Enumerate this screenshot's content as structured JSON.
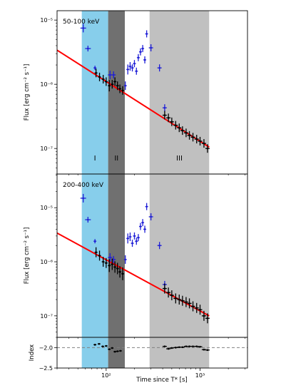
{
  "chart_data": {
    "type": "scatter",
    "x_scale": "log",
    "xlim": [
      30,
      3200
    ],
    "x_ticks": [
      100,
      1000
    ],
    "x_tick_labels": [
      "10²",
      "10³"
    ],
    "xlabel": "Time since T* [s]",
    "regions": [
      {
        "label": "I",
        "x": [
          55,
          105
        ],
        "color": "#87ceeb"
      },
      {
        "label": "II",
        "x": [
          105,
          158
        ],
        "color": "#707070"
      },
      {
        "label": "III",
        "x": [
          290,
          1250
        ],
        "color": "#c0c0c0"
      }
    ],
    "panels": [
      {
        "annotation": "50-100 keV",
        "ylabel": "Flux [erg cm⁻² s⁻¹]",
        "y_scale": "log",
        "ylim": [
          4e-08,
          1.4e-05
        ],
        "y_ticks": [
          1e-07,
          1e-06,
          1e-05
        ],
        "y_tick_labels": [
          "10⁻⁷",
          "10⁻⁶",
          "10⁻⁵"
        ],
        "show_region_labels": true,
        "fit_line": {
          "x": [
            30,
            1250
          ],
          "y": [
            3.4e-06,
            1.05e-07
          ],
          "color": "#ff0000"
        },
        "series": [
          {
            "color": "#1f1fd6",
            "points": [
              [
                57,
                7.5e-06,
                4,
                6
              ],
              [
                64,
                3.6e-06,
                4,
                4
              ],
              [
                76,
                1.8e-06,
                2,
                3
              ],
              [
                110,
                1.4e-06,
                3,
                6
              ],
              [
                120,
                1.4e-06,
                3,
                5
              ],
              [
                160,
                9.5e-07,
                2,
                6
              ],
              [
                170,
                1.7e-06,
                2,
                7
              ],
              [
                180,
                1.9e-06,
                2,
                6
              ],
              [
                190,
                1.8e-06,
                2,
                5
              ],
              [
                200,
                2.1e-06,
                2,
                5
              ],
              [
                210,
                1.6e-06,
                2,
                5
              ],
              [
                220,
                2.6e-06,
                2,
                5
              ],
              [
                232,
                3.2e-06,
                2,
                5
              ],
              [
                245,
                3.6e-06,
                2,
                5
              ],
              [
                258,
                2.4e-06,
                2,
                5
              ],
              [
                270,
                6.1e-06,
                2,
                5
              ],
              [
                300,
                3.7e-06,
                3,
                5
              ],
              [
                370,
                1.8e-06,
                3,
                5
              ],
              [
                420,
                4.3e-07,
                3,
                5
              ]
            ]
          },
          {
            "color": "#000000",
            "points": [
              [
                78,
                1.5e-06,
                2,
                6
              ],
              [
                85,
                1.3e-06,
                2,
                6
              ],
              [
                93,
                1.2e-06,
                2,
                6
              ],
              [
                100,
                1.1e-06,
                2,
                6
              ],
              [
                108,
                9.5e-07,
                2,
                8
              ],
              [
                116,
                1e-06,
                2,
                6
              ],
              [
                124,
                1.1e-06,
                2,
                6
              ],
              [
                132,
                9.5e-07,
                2,
                6
              ],
              [
                140,
                8.5e-07,
                2,
                6
              ],
              [
                150,
                8e-07,
                2,
                6
              ],
              [
                420,
                3.3e-07,
                3,
                6
              ],
              [
                460,
                3e-07,
                3,
                6
              ],
              [
                500,
                2.6e-07,
                3,
                6
              ],
              [
                550,
                2.3e-07,
                3,
                6
              ],
              [
                600,
                2.1e-07,
                3,
                6
              ],
              [
                650,
                1.9e-07,
                3,
                6
              ],
              [
                710,
                1.75e-07,
                3,
                6
              ],
              [
                770,
                1.6e-07,
                3,
                6
              ],
              [
                840,
                1.5e-07,
                3,
                6
              ],
              [
                920,
                1.4e-07,
                3,
                6
              ],
              [
                1000,
                1.3e-07,
                3,
                6
              ],
              [
                1100,
                1.2e-07,
                3,
                6
              ],
              [
                1200,
                1e-07,
                3,
                6
              ]
            ]
          }
        ]
      },
      {
        "annotation": "200-400 keV",
        "ylabel": "Flux [erg cm⁻² s⁻¹]",
        "y_scale": "log",
        "ylim": [
          4e-08,
          4.2e-05
        ],
        "y_ticks": [
          1e-07,
          1e-06,
          1e-05
        ],
        "y_tick_labels": [
          "10⁻⁷",
          "10⁻⁶",
          "10⁻⁵"
        ],
        "show_region_labels": false,
        "fit_line": {
          "x": [
            30,
            1250
          ],
          "y": [
            3.4e-06,
            1e-07
          ],
          "color": "#ff0000"
        },
        "series": [
          {
            "color": "#1f1fd6",
            "points": [
              [
                57,
                1.5e-05,
                4,
                6
              ],
              [
                64,
                6e-06,
                4,
                4
              ],
              [
                76,
                2.4e-06,
                2,
                3
              ],
              [
                110,
                1.2e-06,
                3,
                6
              ],
              [
                120,
                1.1e-06,
                3,
                5
              ],
              [
                160,
                1.1e-06,
                2,
                6
              ],
              [
                170,
                2.7e-06,
                2,
                7
              ],
              [
                180,
                2.9e-06,
                2,
                6
              ],
              [
                190,
                2.2e-06,
                2,
                5
              ],
              [
                200,
                3e-06,
                2,
                5
              ],
              [
                210,
                2.4e-06,
                2,
                5
              ],
              [
                220,
                2.8e-06,
                2,
                5
              ],
              [
                232,
                4.5e-06,
                2,
                5
              ],
              [
                245,
                5.3e-06,
                2,
                5
              ],
              [
                258,
                4e-06,
                2,
                5
              ],
              [
                270,
                1.05e-05,
                2,
                5
              ],
              [
                300,
                6.8e-06,
                3,
                5
              ],
              [
                370,
                2e-06,
                3,
                5
              ],
              [
                420,
                3.8e-07,
                3,
                5
              ]
            ]
          },
          {
            "color": "#000000",
            "points": [
              [
                78,
                1.5e-06,
                2,
                7
              ],
              [
                85,
                1.3e-06,
                2,
                7
              ],
              [
                93,
                1e-06,
                2,
                7
              ],
              [
                100,
                9.5e-07,
                2,
                7
              ],
              [
                108,
                8.5e-07,
                2,
                9
              ],
              [
                116,
                9e-07,
                2,
                8
              ],
              [
                124,
                8e-07,
                2,
                8
              ],
              [
                132,
                7.5e-07,
                2,
                8
              ],
              [
                140,
                6.5e-07,
                2,
                8
              ],
              [
                150,
                6e-07,
                2,
                9
              ],
              [
                420,
                3.2e-07,
                3,
                7
              ],
              [
                460,
                2.7e-07,
                3,
                7
              ],
              [
                500,
                2.4e-07,
                3,
                7
              ],
              [
                550,
                2.1e-07,
                3,
                7
              ],
              [
                600,
                2e-07,
                3,
                7
              ],
              [
                650,
                1.9e-07,
                3,
                7
              ],
              [
                710,
                1.8e-07,
                3,
                7
              ],
              [
                770,
                1.7e-07,
                3,
                7
              ],
              [
                840,
                1.5e-07,
                3,
                7
              ],
              [
                920,
                1.4e-07,
                3,
                7
              ],
              [
                1000,
                1.3e-07,
                3,
                7
              ],
              [
                1100,
                1e-07,
                3,
                7
              ],
              [
                1200,
                9e-08,
                3,
                7
              ]
            ]
          }
        ]
      },
      {
        "annotation": "",
        "ylabel": "Index",
        "y_scale": "linear",
        "ylim": [
          -2.5,
          -1.75
        ],
        "y_ticks": [
          -2.0,
          -2.5
        ],
        "y_tick_labels": [
          "−2.0",
          "−2.5"
        ],
        "show_region_labels": false,
        "hline": {
          "y": -2.0,
          "color": "#808080",
          "style": "dashed"
        },
        "series": [
          {
            "color": "#000000",
            "points": [
              [
                76,
                -1.93,
                2,
                0
              ],
              [
                84,
                -1.91,
                2,
                0
              ],
              [
                92,
                -1.97,
                2,
                0
              ],
              [
                100,
                -1.96,
                2,
                0
              ],
              [
                108,
                -2.04,
                2,
                0
              ],
              [
                116,
                -2.01,
                2,
                0
              ],
              [
                124,
                -2.1,
                2,
                0
              ],
              [
                132,
                -2.09,
                2,
                0
              ],
              [
                142,
                -2.08,
                2,
                0
              ],
              [
                420,
                -1.97,
                3,
                0
              ],
              [
                460,
                -2.03,
                3,
                0
              ],
              [
                500,
                -2.01,
                3,
                0
              ],
              [
                550,
                -2.0,
                3,
                0
              ],
              [
                600,
                -1.99,
                3,
                0
              ],
              [
                650,
                -1.99,
                3,
                0
              ],
              [
                710,
                -1.97,
                3,
                0
              ],
              [
                770,
                -1.97,
                3,
                0
              ],
              [
                840,
                -1.97,
                3,
                0
              ],
              [
                920,
                -1.97,
                3,
                0
              ],
              [
                1000,
                -1.98,
                3,
                0
              ],
              [
                1100,
                -2.05,
                3,
                0
              ],
              [
                1200,
                -2.06,
                3,
                0
              ]
            ]
          }
        ]
      }
    ]
  }
}
